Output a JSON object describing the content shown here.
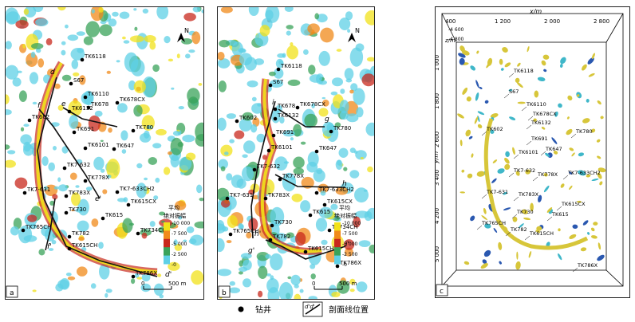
{
  "panels": {
    "a": {
      "letter": "a",
      "wells": [
        {
          "name": "TK6118",
          "x": 96,
          "y": 66
        },
        {
          "name": "S67",
          "x": 82,
          "y": 96
        },
        {
          "name": "TK6110",
          "x": 100,
          "y": 113
        },
        {
          "name": "TK678",
          "x": 104,
          "y": 126
        },
        {
          "name": "TK678CX",
          "x": 140,
          "y": 120
        },
        {
          "name": "TK6132",
          "x": 80,
          "y": 131
        },
        {
          "name": "TK602",
          "x": 30,
          "y": 142
        },
        {
          "name": "TK780",
          "x": 160,
          "y": 155
        },
        {
          "name": "TK691",
          "x": 86,
          "y": 157
        },
        {
          "name": "TK6101",
          "x": 100,
          "y": 177
        },
        {
          "name": "TK647",
          "x": 136,
          "y": 178
        },
        {
          "name": "TK7-632",
          "x": 74,
          "y": 202
        },
        {
          "name": "TK778X",
          "x": 100,
          "y": 218
        },
        {
          "name": "TK783X",
          "x": 76,
          "y": 237
        },
        {
          "name": "TK7-633CH2",
          "x": 140,
          "y": 232
        },
        {
          "name": "TK7-631",
          "x": 24,
          "y": 233
        },
        {
          "name": "TK615CX",
          "x": 154,
          "y": 248
        },
        {
          "name": "TK730",
          "x": 76,
          "y": 258
        },
        {
          "name": "TK615",
          "x": 122,
          "y": 265
        },
        {
          "name": "TK765CH",
          "x": 22,
          "y": 280
        },
        {
          "name": "TK734CH",
          "x": 166,
          "y": 284
        },
        {
          "name": "TK782",
          "x": 80,
          "y": 288
        },
        {
          "name": "TK615CH",
          "x": 80,
          "y": 303
        },
        {
          "name": "TK786X",
          "x": 160,
          "y": 338
        }
      ],
      "section_labels": [
        {
          "text": "d",
          "x": 56,
          "y": 84
        },
        {
          "text": "f",
          "x": 40,
          "y": 126
        },
        {
          "text": "e",
          "x": 70,
          "y": 124
        },
        {
          "text": "e'",
          "x": 112,
          "y": 243
        },
        {
          "text": "f'",
          "x": 52,
          "y": 303
        },
        {
          "text": "d'",
          "x": 200,
          "y": 338
        }
      ],
      "colorbar": {
        "title_line1": "平均",
        "title_line2": "绝对振幅",
        "ticks": [
          "10 000",
          "7 500",
          "5 000",
          "2 500",
          "0"
        ]
      },
      "scale": {
        "left": "0",
        "right": "500 m"
      },
      "north": "N"
    },
    "b": {
      "letter": "b",
      "wells": [
        {
          "name": "TK6118",
          "x": 76,
          "y": 78
        },
        {
          "name": "S67",
          "x": 66,
          "y": 98
        },
        {
          "name": "TK678",
          "x": 72,
          "y": 128
        },
        {
          "name": "TK678CX",
          "x": 100,
          "y": 126
        },
        {
          "name": "TK6132",
          "x": 72,
          "y": 140
        },
        {
          "name": "TK602",
          "x": 24,
          "y": 143
        },
        {
          "name": "TK780",
          "x": 142,
          "y": 156
        },
        {
          "name": "TK691",
          "x": 70,
          "y": 161
        },
        {
          "name": "TK6101",
          "x": 64,
          "y": 180
        },
        {
          "name": "TK647",
          "x": 124,
          "y": 181
        },
        {
          "name": "TK7-632",
          "x": 46,
          "y": 204
        },
        {
          "name": "TK778X",
          "x": 78,
          "y": 216
        },
        {
          "name": "TK7-633CH2",
          "x": 124,
          "y": 233
        },
        {
          "name": "TK7-631",
          "x": 12,
          "y": 240
        },
        {
          "name": "TK783X",
          "x": 60,
          "y": 240
        },
        {
          "name": "TK615CX",
          "x": 134,
          "y": 248
        },
        {
          "name": "TK615",
          "x": 116,
          "y": 261
        },
        {
          "name": "TK730",
          "x": 68,
          "y": 274
        },
        {
          "name": "TK734CH",
          "x": 140,
          "y": 280
        },
        {
          "name": "TK765CH",
          "x": 16,
          "y": 285
        },
        {
          "name": "TK782",
          "x": 66,
          "y": 292
        },
        {
          "name": "TK615CH",
          "x": 110,
          "y": 307
        },
        {
          "name": "TK786X",
          "x": 150,
          "y": 325
        }
      ],
      "section_labels": [
        {
          "text": "g",
          "x": 134,
          "y": 143
        },
        {
          "text": "h",
          "x": 156,
          "y": 224
        },
        {
          "text": "h'",
          "x": 46,
          "y": 287
        },
        {
          "text": "g'",
          "x": 38,
          "y": 308
        },
        {
          "text": "i",
          "x": 68,
          "y": 122
        },
        {
          "text": "i'",
          "x": 160,
          "y": 300
        }
      ],
      "colorbar": {
        "title_line1": "平均",
        "title_line2": "绝对振幅",
        "ticks": [
          "10 000",
          "7 500",
          "5 000",
          "2 500",
          "0"
        ]
      },
      "scale": {
        "left": "0",
        "right": "500 m"
      },
      "north": "N"
    },
    "c": {
      "letter": "c",
      "x_axis_label": "x/m",
      "x_ticks": [
        "400",
        "1 200",
        "2 000",
        "2 800"
      ],
      "y_axis_label": "y/m",
      "y_ticks": [
        "1 000",
        "1 800",
        "2 600",
        "3 400",
        "4 200",
        "5 000"
      ],
      "z_axis_label": "z/m",
      "z_ticks": [
        "-4 600",
        "-4 800"
      ],
      "wells": [
        {
          "name": "TK6118",
          "x": 98,
          "y": 82
        },
        {
          "name": "S67",
          "x": 92,
          "y": 108
        },
        {
          "name": "TK6110",
          "x": 114,
          "y": 124
        },
        {
          "name": "TK678CX",
          "x": 122,
          "y": 136
        },
        {
          "name": "TK6132",
          "x": 120,
          "y": 147
        },
        {
          "name": "TK602",
          "x": 64,
          "y": 155
        },
        {
          "name": "TK780",
          "x": 176,
          "y": 158
        },
        {
          "name": "TK691",
          "x": 120,
          "y": 167
        },
        {
          "name": "TK647",
          "x": 138,
          "y": 180
        },
        {
          "name": "TK6101",
          "x": 104,
          "y": 184
        },
        {
          "name": "TK7-633CH2",
          "x": 166,
          "y": 210
        },
        {
          "name": "TK7-632",
          "x": 98,
          "y": 207
        },
        {
          "name": "TK778X",
          "x": 128,
          "y": 212
        },
        {
          "name": "TK7-631",
          "x": 64,
          "y": 234
        },
        {
          "name": "TK783X",
          "x": 104,
          "y": 237
        },
        {
          "name": "TK615CX",
          "x": 158,
          "y": 249
        },
        {
          "name": "TK730",
          "x": 102,
          "y": 259
        },
        {
          "name": "TK615",
          "x": 146,
          "y": 262
        },
        {
          "name": "TK765CH",
          "x": 58,
          "y": 273
        },
        {
          "name": "TK782",
          "x": 94,
          "y": 281
        },
        {
          "name": "TK615CH",
          "x": 118,
          "y": 286
        },
        {
          "name": "TK786X",
          "x": 178,
          "y": 326
        }
      ]
    }
  },
  "legend": {
    "well_label": "钻井",
    "section_label": "剖面线位置",
    "section_symbol": "d'd'"
  },
  "colors": {
    "yellow": "#f2e21a",
    "orange": "#f08a1a",
    "red": "#c8281c",
    "green": "#3aa35a",
    "cyan": "#5fd0e6",
    "blue": "#2d62b8"
  }
}
